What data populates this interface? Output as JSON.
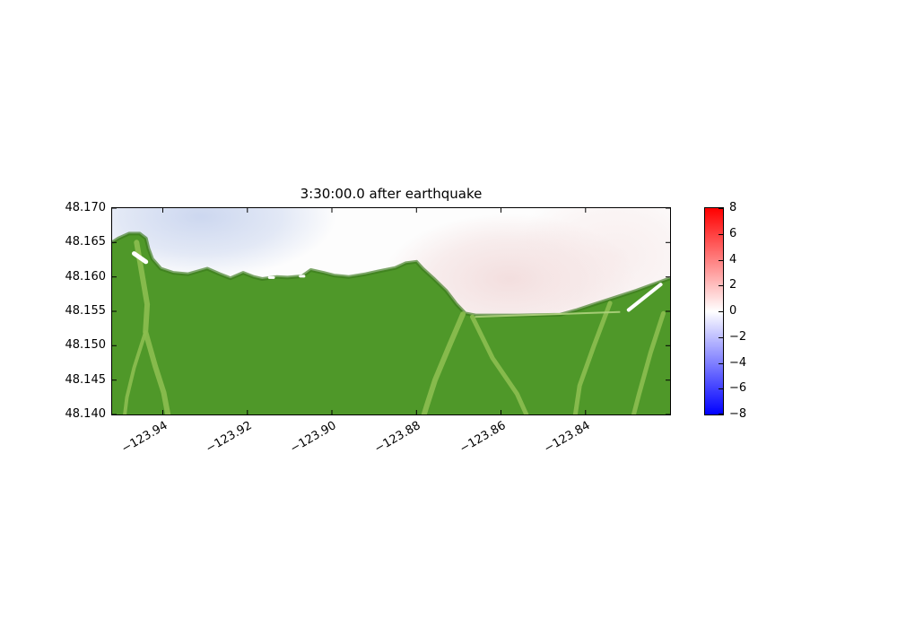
{
  "chart_data": {
    "type": "heatmap",
    "title": "3:30:00.0 after earthquake",
    "xlabel": "",
    "ylabel": "",
    "xlim": [
      -123.952,
      -123.82
    ],
    "ylim": [
      48.14,
      48.17
    ],
    "x_ticks": [
      -123.94,
      -123.92,
      -123.9,
      -123.88,
      -123.86,
      -123.84
    ],
    "x_tick_labels": [
      "−123.94",
      "−123.92",
      "−123.90",
      "−123.88",
      "−123.86",
      "−123.84"
    ],
    "y_ticks": [
      48.17,
      48.165,
      48.16,
      48.155,
      48.15,
      48.145,
      48.14
    ],
    "y_tick_labels": [
      "48.170",
      "48.165",
      "48.160",
      "48.155",
      "48.150",
      "48.145",
      "48.140"
    ],
    "grid": false,
    "colorbar": {
      "min": -8,
      "max": 8,
      "ticks": [
        8,
        6,
        4,
        2,
        0,
        -2,
        -4,
        -6,
        -8
      ],
      "tick_labels": [
        "8",
        "6",
        "4",
        "2",
        "0",
        "−2",
        "−4",
        "−6",
        "−8"
      ],
      "colormap": "bwr",
      "color_top": "#ff0000",
      "color_mid": "#ffffff",
      "color_bottom": "#0000ff"
    },
    "water": {
      "base_color": "#fdfdfd",
      "anomalies": [
        {
          "lon": -123.931,
          "lat": 48.1688,
          "rx_deg": 0.032,
          "ry_deg": 0.009,
          "color": "#c7d3ee",
          "peak_opacity": 0.9,
          "estimated_value": -1
        },
        {
          "lon": -123.858,
          "lat": 48.1597,
          "rx_deg": 0.03,
          "ry_deg": 0.0095,
          "color": "#f1d9d9",
          "peak_opacity": 0.85,
          "estimated_value": 1
        },
        {
          "lon": -123.833,
          "lat": 48.163,
          "rx_deg": 0.024,
          "ry_deg": 0.011,
          "color": "#f5e4e4",
          "peak_opacity": 0.6,
          "estimated_value": 0.5
        }
      ]
    },
    "land": {
      "color": "#4f9829",
      "edge_color": "#3a7a1c",
      "coastline": [
        [
          -123.952,
          48.165
        ],
        [
          -123.9505,
          48.1656
        ],
        [
          -123.948,
          48.1663
        ],
        [
          -123.9455,
          48.1663
        ],
        [
          -123.944,
          48.1656
        ],
        [
          -123.9434,
          48.1641
        ],
        [
          -123.9425,
          48.1626
        ],
        [
          -123.9405,
          48.1612
        ],
        [
          -123.9375,
          48.1606
        ],
        [
          -123.934,
          48.1604
        ],
        [
          -123.9295,
          48.1612
        ],
        [
          -123.9265,
          48.1604
        ],
        [
          -123.924,
          48.1598
        ],
        [
          -123.921,
          48.1606
        ],
        [
          -123.9185,
          48.16
        ],
        [
          -123.9165,
          48.1597
        ],
        [
          -123.913,
          48.16
        ],
        [
          -123.9105,
          48.1599
        ],
        [
          -123.907,
          48.1601
        ],
        [
          -123.905,
          48.161
        ],
        [
          -123.902,
          48.1606
        ],
        [
          -123.8995,
          48.1602
        ],
        [
          -123.896,
          48.16
        ],
        [
          -123.892,
          48.1604
        ],
        [
          -123.889,
          48.1608
        ],
        [
          -123.885,
          48.1613
        ],
        [
          -123.8825,
          48.162
        ],
        [
          -123.88,
          48.1622
        ],
        [
          -123.8785,
          48.1612
        ],
        [
          -123.876,
          48.1598
        ],
        [
          -123.873,
          48.158
        ],
        [
          -123.8705,
          48.156
        ],
        [
          -123.8685,
          48.1547
        ],
        [
          -123.866,
          48.1544
        ],
        [
          -123.856,
          48.1544
        ],
        [
          -123.846,
          48.1545
        ],
        [
          -123.842,
          48.1552
        ],
        [
          -123.838,
          48.156
        ],
        [
          -123.833,
          48.157
        ],
        [
          -123.828,
          48.158
        ],
        [
          -123.8235,
          48.159
        ],
        [
          -123.82,
          48.1598
        ]
      ]
    },
    "valleys": {
      "color": "#8cbe50",
      "paths": [
        {
          "width": 6,
          "points": [
            [
              -123.9462,
              48.165
            ],
            [
              -123.9448,
              48.16
            ],
            [
              -123.9437,
              48.156
            ],
            [
              -123.9441,
              48.152
            ],
            [
              -123.9418,
              48.147
            ],
            [
              -123.9398,
              48.1432
            ],
            [
              -123.9388,
              48.14
            ]
          ]
        },
        {
          "width": 4,
          "points": [
            [
              -123.9441,
              48.152
            ],
            [
              -123.9468,
              48.1468
            ],
            [
              -123.9485,
              48.1425
            ],
            [
              -123.949,
              48.14
            ]
          ]
        },
        {
          "width": 6,
          "points": [
            [
              -123.869,
              48.1546
            ],
            [
              -123.8722,
              48.15
            ],
            [
              -123.8756,
              48.145
            ],
            [
              -123.8776,
              48.1412
            ],
            [
              -123.8782,
              48.14
            ]
          ]
        },
        {
          "width": 5,
          "points": [
            [
              -123.8668,
              48.1542
            ],
            [
              -123.862,
              48.1482
            ],
            [
              -123.8562,
              48.143
            ],
            [
              -123.854,
              48.14
            ]
          ]
        },
        {
          "width": 5,
          "points": [
            [
              -123.8342,
              48.1562
            ],
            [
              -123.838,
              48.15
            ],
            [
              -123.8414,
              48.1442
            ],
            [
              -123.8424,
              48.14
            ]
          ]
        },
        {
          "width": 5,
          "points": [
            [
              -123.8216,
              48.1547
            ],
            [
              -123.8246,
              48.149
            ],
            [
              -123.8274,
              48.1428
            ],
            [
              -123.8286,
              48.14
            ]
          ]
        },
        {
          "width": 2,
          "color": "#aed17c",
          "points": [
            [
              -123.866,
              48.1542
            ],
            [
              -123.832,
              48.1549
            ]
          ]
        }
      ]
    },
    "no_data": {
      "color": "#ffffff",
      "paths": [
        {
          "width": 5,
          "points": [
            [
              -123.9468,
              48.1634
            ],
            [
              -123.944,
              48.1622
            ]
          ]
        },
        {
          "width": 4,
          "points": [
            [
              -123.8222,
              48.1589
            ],
            [
              -123.8298,
              48.1552
            ]
          ]
        },
        {
          "width": 3,
          "points": [
            [
              -123.9148,
              48.1599
            ],
            [
              -123.9138,
              48.1599
            ]
          ]
        },
        {
          "width": 3,
          "points": [
            [
              -123.9075,
              48.1601
            ],
            [
              -123.9066,
              48.1601
            ]
          ]
        }
      ]
    }
  }
}
